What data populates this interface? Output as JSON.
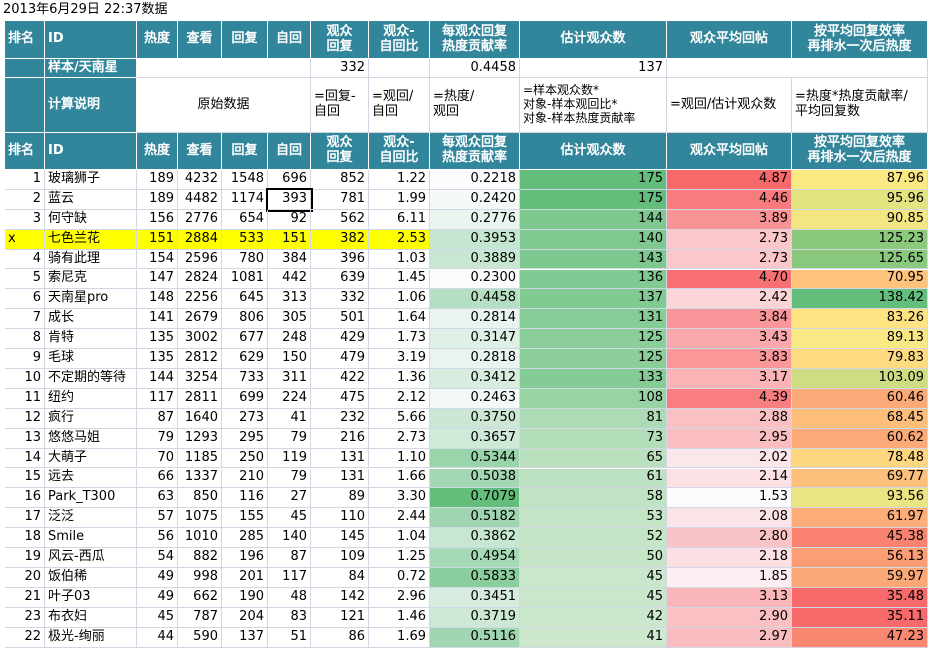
{
  "title": "2013年6月29日 22:37数据",
  "header": [
    "排名",
    "ID",
    "热度",
    "查看",
    "回复",
    "自回",
    "观众\n回复",
    "观众-\n自回比",
    "每观众回复\n热度贡献率",
    "估计观众数",
    "观众平均回帖",
    "按平均回复效率\n再排水一次后热度"
  ],
  "sample": {
    "label": "样本/天南星",
    "reply": "332",
    "rate": "0.4458",
    "audience": "137"
  },
  "explain": {
    "label": "计算说明",
    "raw": "原始数据",
    "reply": "=回复-\n自回",
    "ratio": "=观回/\n自回",
    "rate": "=热度/\n观回",
    "audience": "=样本观众数*\n对象-样本观回比*\n对象-样本热度贡献率",
    "avg": "=观回/估计观众数",
    "heat": "=热度*热度贡献率/\n平均回复数"
  },
  "rows": [
    [
      "1",
      "玻璃狮子",
      "189",
      "4232",
      "1548",
      "696",
      "852",
      "1.22",
      "0.2218",
      "175",
      "4.87",
      "87.96"
    ],
    [
      "2",
      "蓝云",
      "189",
      "4482",
      "1174",
      "393",
      "781",
      "1.99",
      "0.2420",
      "175",
      "4.46",
      "95.96"
    ],
    [
      "3",
      "何守缺",
      "156",
      "2776",
      "654",
      "92",
      "562",
      "6.11",
      "0.2776",
      "144",
      "3.89",
      "90.85"
    ],
    [
      "x",
      "七色兰花",
      "151",
      "2884",
      "533",
      "151",
      "382",
      "2.53",
      "0.3953",
      "140",
      "2.73",
      "125.23"
    ],
    [
      "4",
      "骑有此理",
      "154",
      "2596",
      "780",
      "384",
      "396",
      "1.03",
      "0.3889",
      "143",
      "2.73",
      "125.65"
    ],
    [
      "5",
      "索尼克",
      "147",
      "2824",
      "1081",
      "442",
      "639",
      "1.45",
      "0.2300",
      "136",
      "4.70",
      "70.95"
    ],
    [
      "6",
      "天南星pro",
      "148",
      "2256",
      "645",
      "313",
      "332",
      "1.06",
      "0.4458",
      "137",
      "2.42",
      "138.42"
    ],
    [
      "7",
      "成长",
      "141",
      "2679",
      "806",
      "305",
      "501",
      "1.64",
      "0.2814",
      "131",
      "3.84",
      "83.26"
    ],
    [
      "8",
      "肯特",
      "135",
      "3002",
      "677",
      "248",
      "429",
      "1.73",
      "0.3147",
      "125",
      "3.43",
      "89.13"
    ],
    [
      "9",
      "毛球",
      "135",
      "2812",
      "629",
      "150",
      "479",
      "3.19",
      "0.2818",
      "125",
      "3.83",
      "79.83"
    ],
    [
      "10",
      "不定期的等待",
      "144",
      "3254",
      "733",
      "311",
      "422",
      "1.36",
      "0.3412",
      "133",
      "3.17",
      "103.09"
    ],
    [
      "11",
      "纽约",
      "117",
      "2811",
      "699",
      "224",
      "475",
      "2.12",
      "0.2463",
      "108",
      "4.39",
      "60.46"
    ],
    [
      "12",
      "疯行",
      "87",
      "1640",
      "273",
      "41",
      "232",
      "5.66",
      "0.3750",
      "81",
      "2.88",
      "68.45"
    ],
    [
      "13",
      "悠悠马姐",
      "79",
      "1293",
      "295",
      "79",
      "216",
      "2.73",
      "0.3657",
      "73",
      "2.95",
      "60.62"
    ],
    [
      "14",
      "大萌子",
      "70",
      "1185",
      "250",
      "119",
      "131",
      "1.10",
      "0.5344",
      "65",
      "2.02",
      "78.48"
    ],
    [
      "15",
      "远去",
      "66",
      "1337",
      "210",
      "79",
      "131",
      "1.66",
      "0.5038",
      "61",
      "2.14",
      "69.77"
    ],
    [
      "16",
      "Park_T300",
      "63",
      "850",
      "116",
      "27",
      "89",
      "3.30",
      "0.7079",
      "58",
      "1.53",
      "93.56"
    ],
    [
      "17",
      "泛泛",
      "57",
      "1075",
      "155",
      "45",
      "110",
      "2.44",
      "0.5182",
      "53",
      "2.08",
      "61.97"
    ],
    [
      "18",
      "Smile",
      "56",
      "1010",
      "285",
      "140",
      "145",
      "1.04",
      "0.3862",
      "52",
      "2.80",
      "45.38"
    ],
    [
      "19",
      "风云-西瓜",
      "54",
      "882",
      "196",
      "87",
      "109",
      "1.25",
      "0.4954",
      "50",
      "2.18",
      "56.13"
    ],
    [
      "20",
      "饭伯稀",
      "49",
      "998",
      "201",
      "117",
      "84",
      "0.72",
      "0.5833",
      "45",
      "1.85",
      "59.97"
    ],
    [
      "21",
      "叶子03",
      "49",
      "662",
      "190",
      "48",
      "142",
      "2.96",
      "0.3451",
      "45",
      "3.13",
      "35.48"
    ],
    [
      "23",
      "布衣妇",
      "45",
      "787",
      "204",
      "83",
      "121",
      "1.46",
      "0.3719",
      "42",
      "2.90",
      "35.11"
    ],
    [
      "22",
      "极光-绚丽",
      "44",
      "590",
      "137",
      "51",
      "86",
      "1.69",
      "0.5116",
      "41",
      "2.97",
      "47.23"
    ]
  ]
}
